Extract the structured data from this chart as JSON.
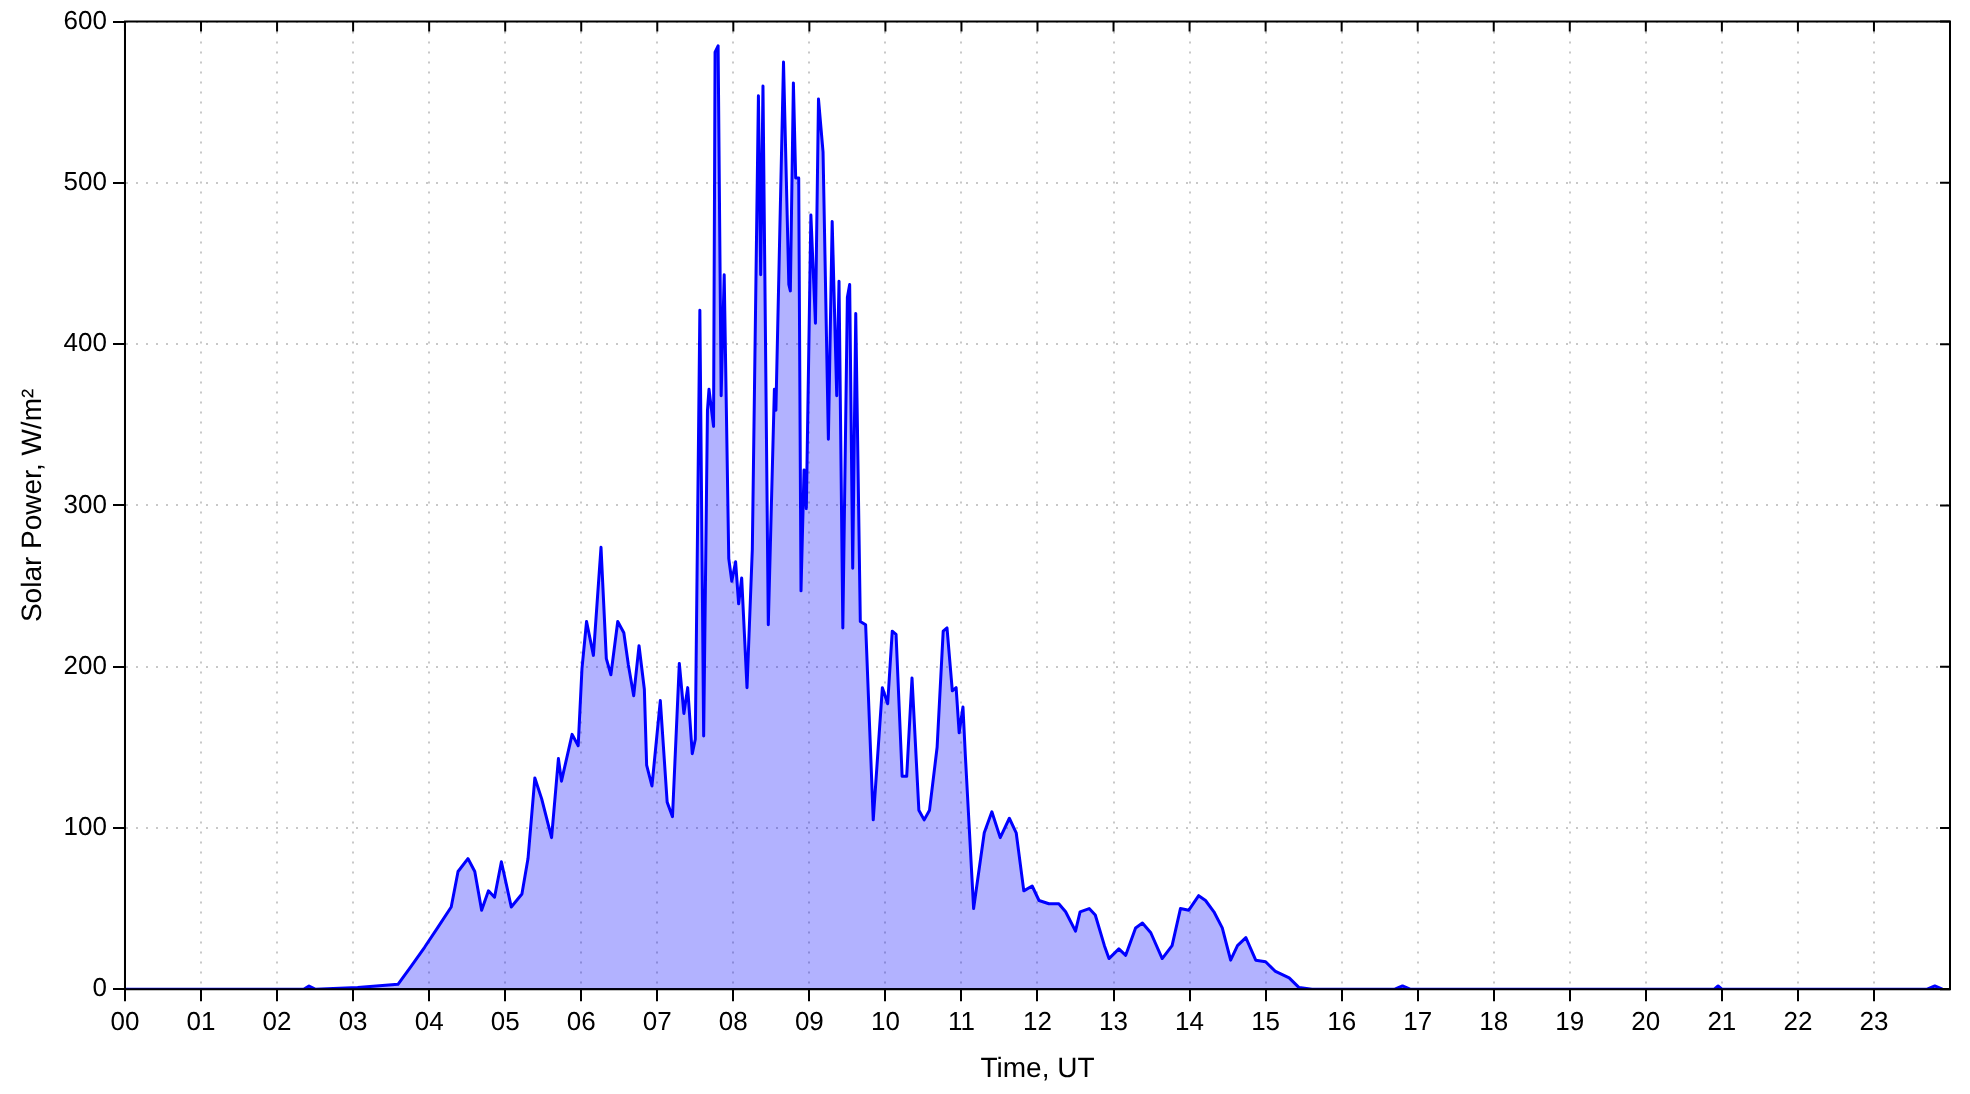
{
  "chart_data": {
    "type": "area",
    "xlabel": "Time, UT",
    "ylabel": "Solar Power, W/m²",
    "xlim": [
      0,
      24
    ],
    "ylim": [
      0,
      600
    ],
    "xticks": [
      {
        "value": 0,
        "label": "00"
      },
      {
        "value": 1,
        "label": "01"
      },
      {
        "value": 2,
        "label": "02"
      },
      {
        "value": 3,
        "label": "03"
      },
      {
        "value": 4,
        "label": "04"
      },
      {
        "value": 5,
        "label": "05"
      },
      {
        "value": 6,
        "label": "06"
      },
      {
        "value": 7,
        "label": "07"
      },
      {
        "value": 8,
        "label": "08"
      },
      {
        "value": 9,
        "label": "09"
      },
      {
        "value": 10,
        "label": "10"
      },
      {
        "value": 11,
        "label": "11"
      },
      {
        "value": 12,
        "label": "12"
      },
      {
        "value": 13,
        "label": "13"
      },
      {
        "value": 14,
        "label": "14"
      },
      {
        "value": 15,
        "label": "15"
      },
      {
        "value": 16,
        "label": "16"
      },
      {
        "value": 17,
        "label": "17"
      },
      {
        "value": 18,
        "label": "18"
      },
      {
        "value": 19,
        "label": "19"
      },
      {
        "value": 20,
        "label": "20"
      },
      {
        "value": 21,
        "label": "21"
      },
      {
        "value": 22,
        "label": "22"
      },
      {
        "value": 23,
        "label": "23"
      }
    ],
    "yticks": [
      0,
      100,
      200,
      300,
      400,
      500,
      600
    ],
    "grid": true,
    "legend": false,
    "marker": "none",
    "line_style": "solid",
    "series": [
      {
        "color": "#0000ff",
        "x": [
          0,
          1,
          2,
          2.35,
          2.42,
          2.5,
          3.06,
          3.59,
          3.76,
          3.94,
          4.11,
          4.29,
          4.38,
          4.51,
          4.6,
          4.69,
          4.78,
          4.86,
          4.95,
          5.08,
          5.22,
          5.3,
          5.39,
          5.48,
          5.61,
          5.7,
          5.74,
          5.88,
          5.96,
          6.01,
          6.07,
          6.16,
          6.26,
          6.33,
          6.39,
          6.48,
          6.56,
          6.62,
          6.69,
          6.76,
          6.83,
          6.86,
          6.93,
          7.04,
          7.13,
          7.2,
          7.29,
          7.35,
          7.4,
          7.46,
          7.5,
          7.56,
          7.61,
          7.66,
          7.68,
          7.74,
          7.76,
          7.8,
          7.84,
          7.88,
          7.94,
          7.98,
          8.03,
          8.07,
          8.11,
          8.18,
          8.25,
          8.33,
          8.36,
          8.39,
          8.46,
          8.54,
          8.56,
          8.66,
          8.73,
          8.75,
          8.79,
          8.82,
          8.86,
          8.89,
          8.93,
          8.96,
          9.02,
          9.08,
          9.12,
          9.18,
          9.25,
          9.3,
          9.36,
          9.39,
          9.44,
          9.5,
          9.53,
          9.57,
          9.61,
          9.67,
          9.74,
          9.84,
          9.96,
          10.03,
          10.09,
          10.14,
          10.22,
          10.28,
          10.35,
          10.44,
          10.51,
          10.58,
          10.68,
          10.76,
          10.81,
          10.88,
          10.93,
          10.97,
          11.02,
          11.05,
          11.16,
          11.3,
          11.4,
          11.51,
          11.63,
          11.72,
          11.82,
          11.93,
          12.02,
          12.15,
          12.28,
          12.37,
          12.5,
          12.56,
          12.68,
          12.76,
          12.88,
          12.94,
          13.07,
          13.16,
          13.29,
          13.38,
          13.49,
          13.64,
          13.77,
          13.88,
          13.99,
          14.12,
          14.21,
          14.32,
          14.43,
          14.54,
          14.63,
          14.74,
          14.87,
          15,
          15.13,
          15.31,
          15.44,
          15.61,
          16.7,
          16.8,
          16.9,
          20.9,
          20.95,
          21,
          23.7,
          23.8,
          23.9
        ],
        "values": [
          0,
          0,
          0,
          0,
          2,
          0,
          1,
          3,
          14,
          26,
          38,
          51,
          73,
          81,
          73,
          49,
          61,
          57,
          79,
          51,
          59,
          81,
          131,
          118,
          94,
          143,
          129,
          158,
          151,
          199,
          228,
          207,
          274,
          205,
          195,
          228,
          221,
          201,
          182,
          213,
          186,
          139,
          126,
          179,
          116,
          107,
          202,
          171,
          187,
          146,
          155,
          421,
          157,
          359,
          372,
          349,
          581,
          585,
          368,
          443,
          267,
          253,
          265,
          239,
          255,
          187,
          273,
          554,
          443,
          560,
          226,
          372,
          359,
          575,
          437,
          433,
          562,
          503,
          503,
          247,
          322,
          298,
          480,
          413,
          552,
          519,
          341,
          476,
          368,
          439,
          224,
          429,
          437,
          261,
          419,
          228,
          226,
          105,
          187,
          177,
          222,
          220,
          132,
          132,
          193,
          111,
          105,
          111,
          150,
          222,
          224,
          185,
          187,
          159,
          175,
          146,
          50,
          97,
          110,
          94,
          106,
          97,
          61,
          64,
          55,
          53,
          53,
          48,
          36,
          48,
          50,
          46,
          27,
          19,
          25,
          21,
          38,
          41,
          35,
          19,
          27,
          50,
          49,
          58,
          55,
          48,
          38,
          18,
          27,
          32,
          18,
          17,
          11,
          7,
          1,
          0,
          0,
          2,
          0,
          0,
          2,
          0,
          0,
          2,
          0
        ]
      }
    ]
  }
}
